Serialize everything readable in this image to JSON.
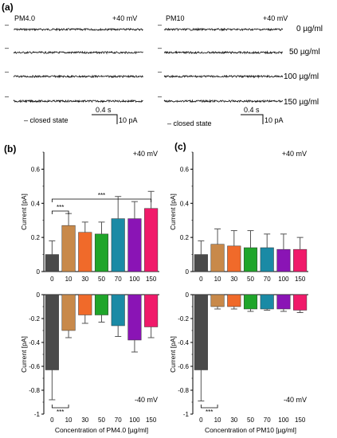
{
  "panel_labels": {
    "a": "(a)",
    "b": "(b)",
    "c": "(c)"
  },
  "traces": {
    "left_title": "PM4.0",
    "right_title": "PM10",
    "voltage": "+40 mV",
    "concentration_labels": [
      "0 µg/ml",
      "50 µg/ml",
      "100 µg/ml",
      "150 µg/ml"
    ],
    "closed_state_legend": "–  closed state",
    "closed_marker": "–",
    "scale_time": "0.4 s",
    "scale_current": "10 pA"
  },
  "colors": [
    "#4a4a4a",
    "#c8894a",
    "#f06a2a",
    "#1fa52a",
    "#1a8aa5",
    "#8a14b5",
    "#f01a6a"
  ],
  "chart_data": [
    {
      "type": "bar",
      "panel": "b-top",
      "categories": [
        "0",
        "10",
        "30",
        "50",
        "70",
        "100",
        "150"
      ],
      "values": [
        0.1,
        0.27,
        0.23,
        0.22,
        0.31,
        0.31,
        0.37
      ],
      "errors": [
        0.08,
        0.07,
        0.06,
        0.07,
        0.13,
        0.1,
        0.1
      ],
      "ylim": [
        0,
        0.7
      ],
      "yticks": [
        "0",
        "0.2",
        "0.4",
        "0.6"
      ],
      "ylabel": "Current [pA]",
      "xlabel": "",
      "annotation": "+40 mV",
      "significance": [
        {
          "from": "0",
          "to": "10",
          "label": "***"
        },
        {
          "from": "0",
          "to": "150",
          "label": "***"
        }
      ]
    },
    {
      "type": "bar",
      "panel": "b-bottom",
      "categories": [
        "0",
        "10",
        "30",
        "50",
        "70",
        "100",
        "150"
      ],
      "values": [
        -0.63,
        -0.3,
        -0.17,
        -0.17,
        -0.26,
        -0.38,
        -0.27
      ],
      "errors": [
        0.25,
        0.06,
        0.07,
        0.06,
        0.09,
        0.1,
        0.09
      ],
      "ylim": [
        -1,
        0
      ],
      "yticks": [
        "-1",
        "-0.8",
        "-0.6",
        "-0.4",
        "-0.2",
        "0"
      ],
      "ylabel": "Current [pA]",
      "xlabel": "Concentration of PM4.0 [µg/ml]",
      "annotation": "-40 mV",
      "significance": [
        {
          "from": "0",
          "to": "10",
          "label": "***"
        }
      ]
    },
    {
      "type": "bar",
      "panel": "c-top",
      "categories": [
        "0",
        "10",
        "30",
        "50",
        "70",
        "100",
        "150"
      ],
      "values": [
        0.1,
        0.16,
        0.15,
        0.14,
        0.14,
        0.13,
        0.13
      ],
      "errors": [
        0.08,
        0.09,
        0.09,
        0.1,
        0.08,
        0.09,
        0.07
      ],
      "ylim": [
        0,
        0.7
      ],
      "yticks": [
        "0",
        "0.2",
        "0.4",
        "0.6"
      ],
      "ylabel": "Current [pA]",
      "xlabel": "",
      "annotation": "+40 mV",
      "significance": []
    },
    {
      "type": "bar",
      "panel": "c-bottom",
      "categories": [
        "0",
        "10",
        "30",
        "50",
        "70",
        "100",
        "150"
      ],
      "values": [
        -0.63,
        -0.1,
        -0.1,
        -0.12,
        -0.12,
        -0.12,
        -0.13
      ],
      "errors": [
        0.26,
        0.02,
        0.02,
        0.02,
        0.01,
        0.02,
        0.02
      ],
      "ylim": [
        -1,
        0
      ],
      "yticks": [
        "-1",
        "-0.8",
        "-0.6",
        "-0.4",
        "-0.2",
        "0"
      ],
      "ylabel": "Current [pA]",
      "xlabel": "Concentration of PM10 [µg/ml]",
      "annotation": "-40 mV",
      "significance": [
        {
          "from": "0",
          "to": "10",
          "label": "***"
        }
      ]
    }
  ]
}
